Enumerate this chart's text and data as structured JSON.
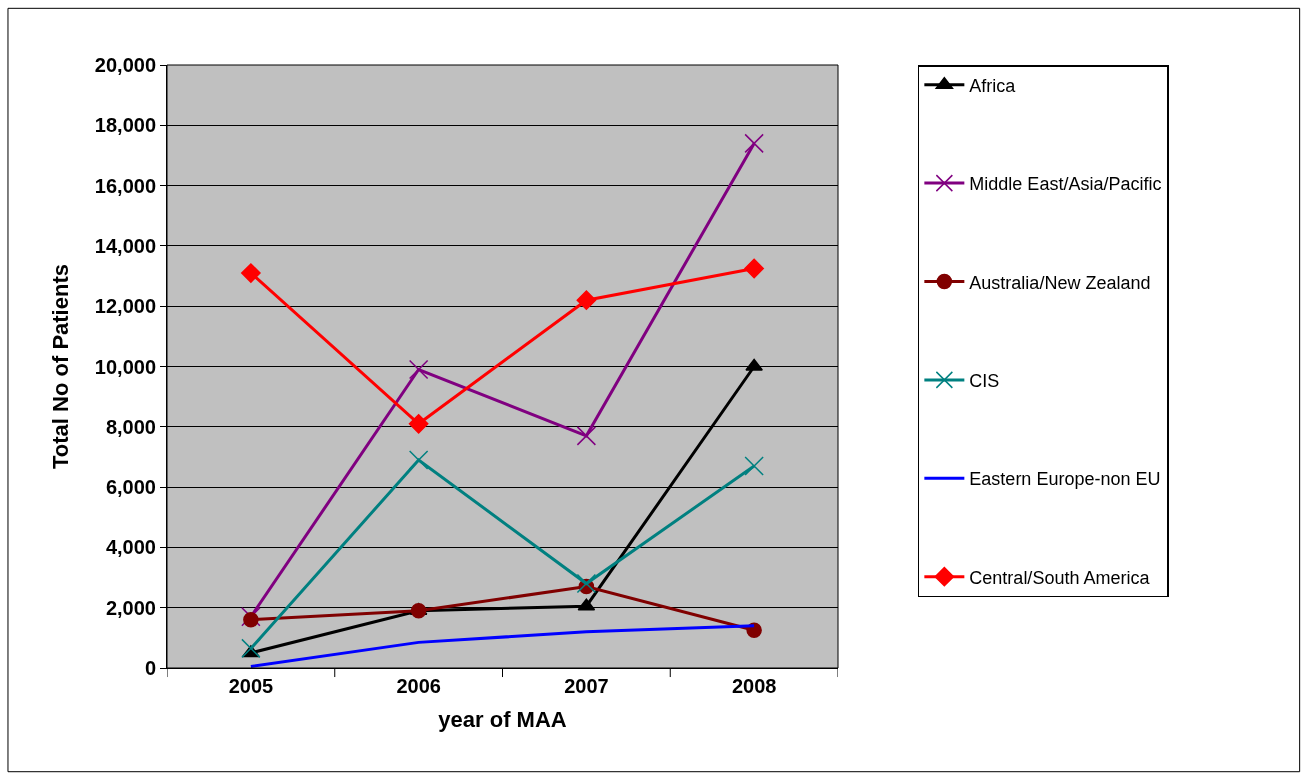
{
  "chart_data": {
    "type": "line",
    "xlabel": "year of MAA",
    "ylabel": "Total No of Patients",
    "categories": [
      "2005",
      "2006",
      "2007",
      "2008"
    ],
    "series": [
      {
        "name": "Africa",
        "color": "#000000",
        "marker": "triangle",
        "values": [
          500,
          1900,
          2050,
          10000
        ]
      },
      {
        "name": "Middle East/Asia/Pacific",
        "color": "#800080",
        "marker": "cross",
        "values": [
          1700,
          9900,
          7700,
          17400
        ]
      },
      {
        "name": "Australia/New Zealand",
        "color": "#800000",
        "marker": "circle",
        "values": [
          1600,
          1900,
          2700,
          1250
        ]
      },
      {
        "name": "CIS",
        "color": "#008080",
        "marker": "cross",
        "values": [
          650,
          6900,
          2800,
          6700
        ]
      },
      {
        "name": "Eastern Europe-non EU",
        "color": "#0000ff",
        "marker": "none",
        "values": [
          50,
          850,
          1200,
          1400
        ]
      },
      {
        "name": "Central/South America",
        "color": "#ff0000",
        "marker": "diamond",
        "values": [
          13100,
          8100,
          12200,
          13250
        ]
      }
    ],
    "ylim": [
      0,
      20000
    ],
    "yticks": [
      {
        "value": 0,
        "label": "0"
      },
      {
        "value": 2000,
        "label": "2,000"
      },
      {
        "value": 4000,
        "label": "4,000"
      },
      {
        "value": 6000,
        "label": "6,000"
      },
      {
        "value": 8000,
        "label": "8,000"
      },
      {
        "value": 10000,
        "label": "10,000"
      },
      {
        "value": 12000,
        "label": "12,000"
      },
      {
        "value": 14000,
        "label": "14,000"
      },
      {
        "value": 16000,
        "label": "16,000"
      },
      {
        "value": 18000,
        "label": "18,000"
      },
      {
        "value": 20000,
        "label": "20,000"
      }
    ],
    "grid": "y",
    "legend": "right",
    "line_style": "solid"
  }
}
